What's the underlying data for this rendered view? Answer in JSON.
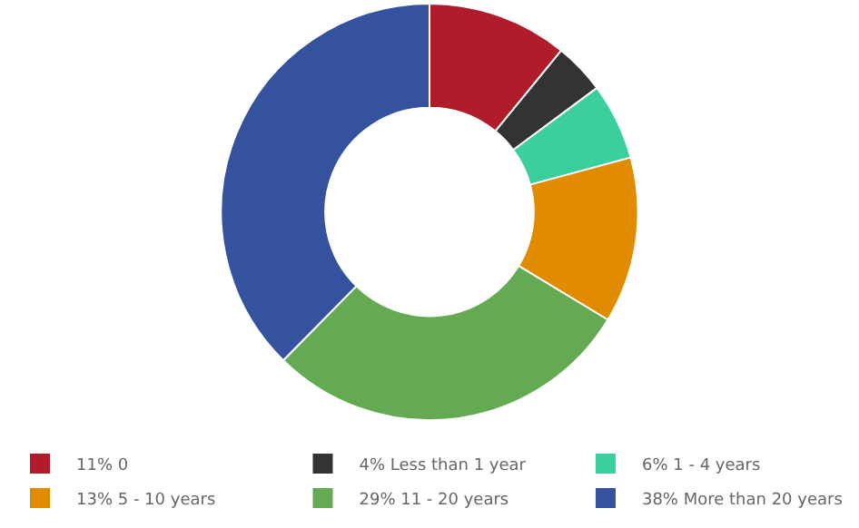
{
  "chart_data": {
    "type": "donut",
    "categories": [
      "11% 0",
      "4% Less than 1 year",
      "6% 1 - 4 years",
      "13% 5 - 10 years",
      "29% 11 - 20 years",
      "38% More than 20 years"
    ],
    "values": [
      11,
      4,
      6,
      13,
      29,
      38
    ],
    "colors": [
      "#b01c2a",
      "#333333",
      "#3ccf9e",
      "#e08b00",
      "#64aa52",
      "#34529e"
    ],
    "legend": "bottom"
  }
}
